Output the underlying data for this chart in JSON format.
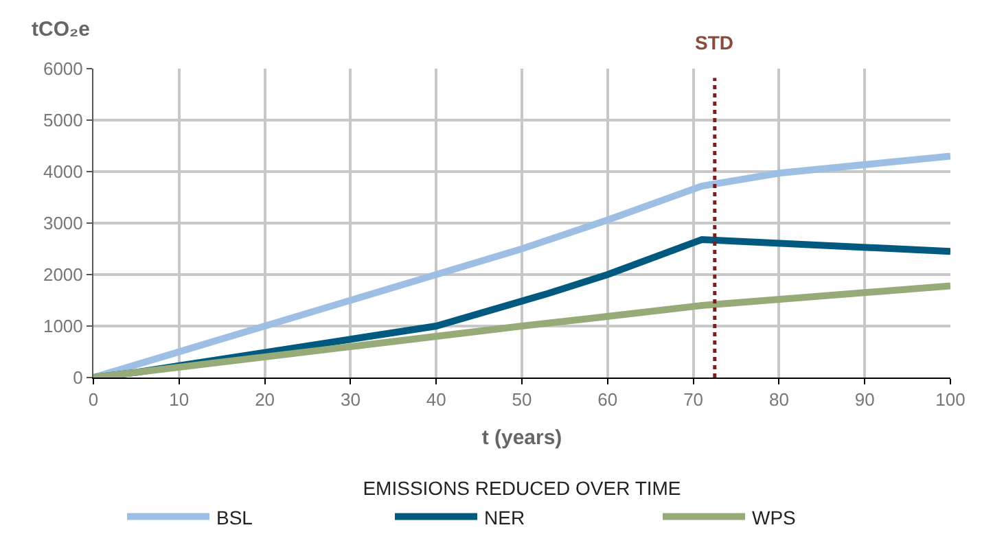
{
  "chart_data": {
    "type": "line",
    "ylabel": "tCO₂e",
    "xlabel": "t (years)",
    "legend_title": "EMISSIONS REDUCED OVER TIME",
    "series": [
      {
        "name": "BSL",
        "color": "#9dbfe3",
        "x": [
          0,
          40,
          50,
          60,
          71,
          80,
          100
        ],
        "values": [
          0,
          2000,
          2500,
          3060,
          3720,
          3970,
          4300
        ]
      },
      {
        "name": "NER",
        "color": "#005a80",
        "x": [
          0,
          5,
          40,
          53,
          60,
          71,
          100
        ],
        "values": [
          0,
          100,
          1000,
          1630,
          2000,
          2680,
          2450
        ]
      },
      {
        "name": "WPS",
        "color": "#97ab78",
        "x": [
          0,
          40,
          50,
          57,
          71,
          100
        ],
        "values": [
          0,
          800,
          1000,
          1130,
          1400,
          1780
        ]
      }
    ],
    "xlim": [
      0,
      100
    ],
    "xticks": [
      0,
      10,
      20,
      30,
      40,
      50,
      60,
      70,
      80,
      90,
      100
    ],
    "ylim": [
      0,
      6000
    ],
    "yticks": [
      0,
      1000,
      2000,
      3000,
      4000,
      5000,
      6000
    ],
    "ref_lines": [
      {
        "axis": "x",
        "value": 72.5,
        "label": "STD",
        "color": "#7a1f1f",
        "line_style": "dotted"
      }
    ],
    "grid": true,
    "legend": "bottom",
    "marker": "none",
    "line_style": "solid"
  }
}
